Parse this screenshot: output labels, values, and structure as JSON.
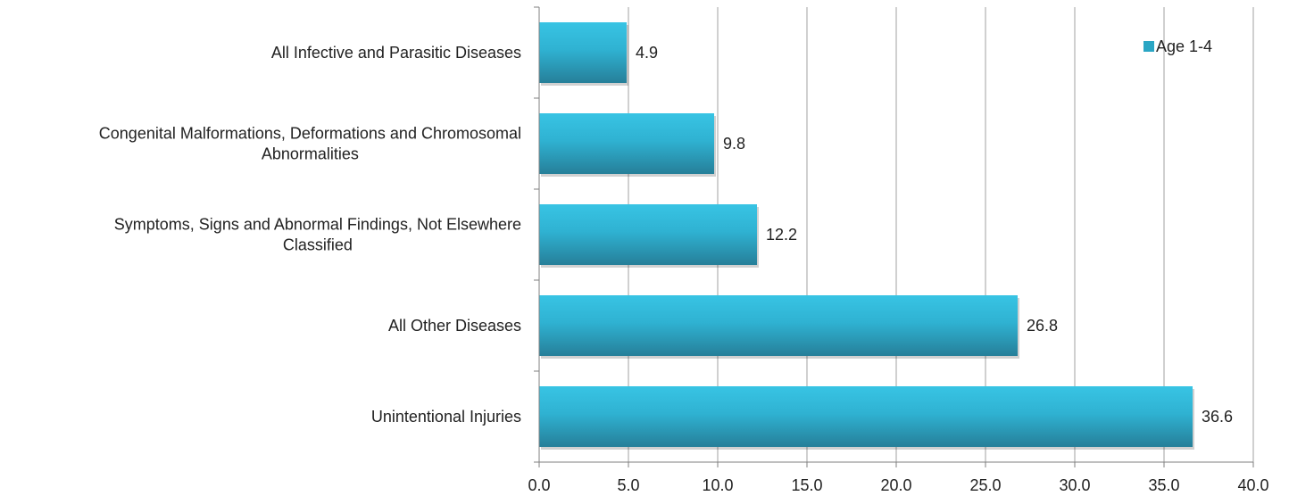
{
  "chart_data": {
    "type": "bar",
    "orientation": "horizontal",
    "categories": [
      "All Infective and Parasitic Diseases",
      "Congenital Malformations, Deformations and Chromosomal Abnormalities",
      "Symptoms, Signs and Abnormal Findings, Not Elsewhere Classified",
      "All Other Diseases",
      "Unintentional Injuries"
    ],
    "category_lines": [
      [
        "All Infective and Parasitic Diseases"
      ],
      [
        "Congenital Malformations, Deformations and Chromosomal",
        "Abnormalities"
      ],
      [
        "Symptoms, Signs and Abnormal Findings, Not Elsewhere",
        "Classified"
      ],
      [
        "All Other Diseases"
      ],
      [
        "Unintentional Injuries"
      ]
    ],
    "series": [
      {
        "name": "Age 1-4",
        "values": [
          4.9,
          9.8,
          12.2,
          26.8,
          36.6
        ]
      }
    ],
    "data_labels": [
      "4.9",
      "9.8",
      "12.2",
      "26.8",
      "36.6"
    ],
    "xlim": [
      0,
      40
    ],
    "x_ticks": [
      0,
      5,
      10,
      15,
      20,
      25,
      30,
      35,
      40
    ],
    "x_tick_labels": [
      "0.0",
      "5.0",
      "10.0",
      "15.0",
      "20.0",
      "25.0",
      "30.0",
      "35.0",
      "40.0"
    ],
    "grid": true,
    "legend_position": "top-right",
    "colors": {
      "bar_top": "#34c0e0",
      "bar_bottom": "#2a8ea8",
      "legend": "#2aa6c4",
      "grid": "#a0a0a0",
      "axis": "#7f7f7f"
    }
  }
}
